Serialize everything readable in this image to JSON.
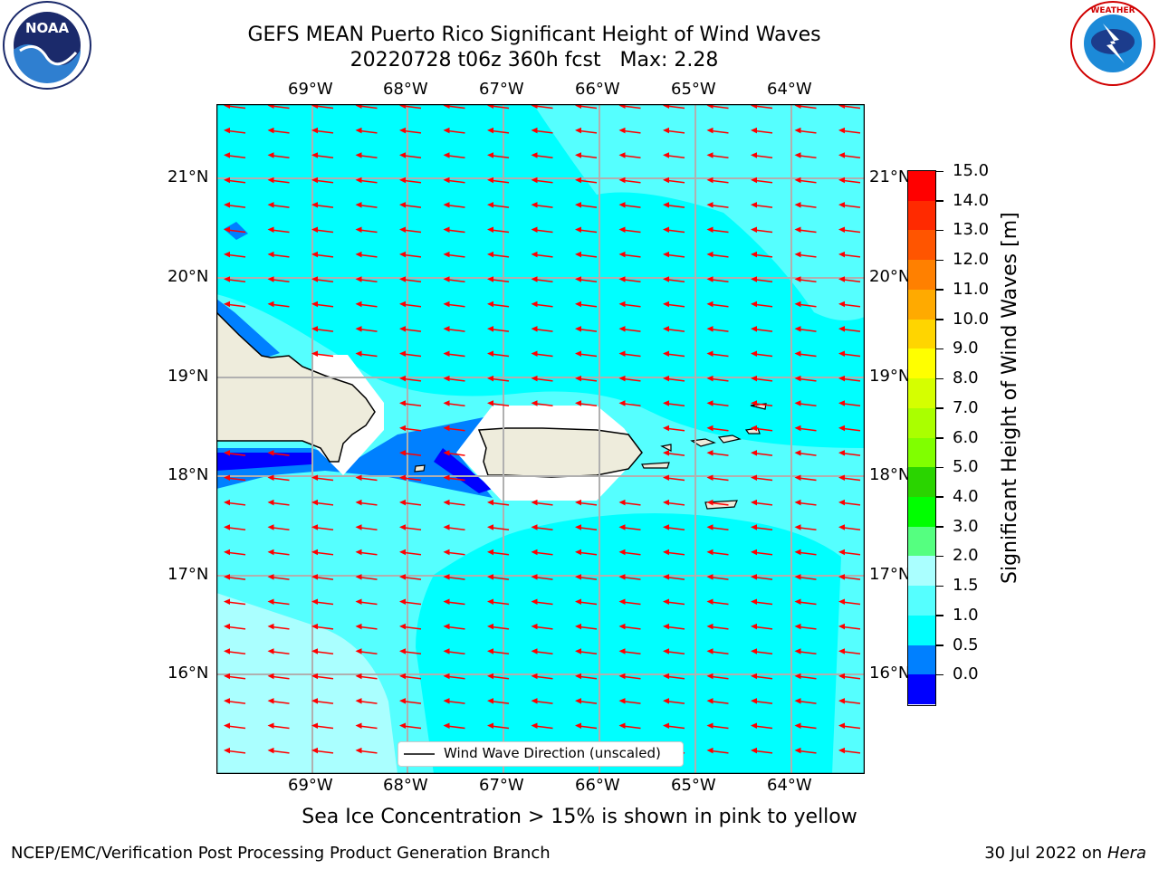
{
  "title": {
    "line1": "GEFS MEAN Puerto Rico Significant Height of Wind Waves",
    "line2": "20220728 t06z 360h fcst   Max: 2.28"
  },
  "logos": {
    "left": {
      "icon": "noaa-logo",
      "text": "NOAA",
      "ring_text": "NATIONAL OCEANIC AND ATMOSPHERIC ADMINISTRATION · U.S. DEPARTMENT OF COMMERCE"
    },
    "right": {
      "icon": "nws-logo",
      "ring_text": "NATIONAL WEATHER SERVICE"
    }
  },
  "map": {
    "lon_labels": [
      "69°W",
      "68°W",
      "67°W",
      "66°W",
      "65°W",
      "64°W"
    ],
    "lat_labels": [
      "21°N",
      "20°N",
      "19°N",
      "18°N",
      "17°N",
      "16°N"
    ],
    "legend_label": "Wind Wave Direction (unscaled)",
    "arrow_color": "#ff0000",
    "land_color": "#eeecdc",
    "wind_direction": "from east to west"
  },
  "colorbar": {
    "label": "Significant Height of Wind Waves [m]",
    "ticks": [
      "15.0",
      "14.0",
      "13.0",
      "12.0",
      "11.0",
      "10.0",
      "9.0",
      "8.0",
      "7.0",
      "6.0",
      "5.0",
      "4.0",
      "3.0",
      "2.0",
      "1.5",
      "1.0",
      "0.5",
      "0.0"
    ],
    "colors_top_to_bottom": [
      "#ff0000",
      "#ff2a00",
      "#ff5500",
      "#ff8000",
      "#ffaa00",
      "#ffd500",
      "#ffff00",
      "#d5ff00",
      "#aaff00",
      "#80ff00",
      "#2ad400",
      "#00ff00",
      "#55ff80",
      "#aaffff",
      "#55ffff",
      "#00ffff",
      "#0080ff",
      "#0000ff"
    ]
  },
  "subtitle": "Sea Ice Concentration > 15% is shown in pink to yellow",
  "footer": {
    "left": "NCEP/EMC/Verification Post Processing Product Generation Branch",
    "right_date": "30 Jul 2022 on ",
    "right_host": "Hera"
  }
}
